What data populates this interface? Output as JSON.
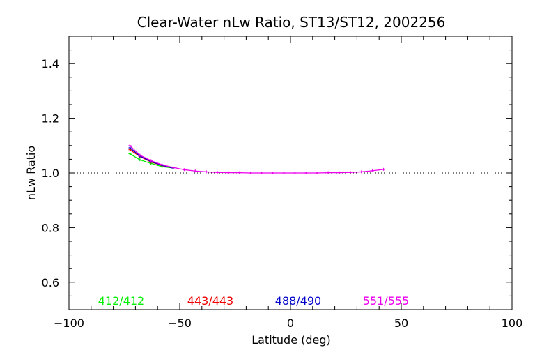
{
  "chart_data": {
    "type": "line",
    "title": "Clear-Water nLw Ratio, ST13/ST12, 2002256",
    "xlabel": "Latitude (deg)",
    "ylabel": "nLw Ratio",
    "xlim": [
      -100,
      100
    ],
    "ylim": [
      0.5,
      1.5
    ],
    "x_ticks": [
      -100,
      -50,
      0,
      50,
      100
    ],
    "x_tick_labels": [
      "−100",
      "−50",
      "0",
      "50",
      "100"
    ],
    "y_ticks": [
      0.6,
      0.8,
      1.0,
      1.2,
      1.4
    ],
    "y_tick_labels": [
      "0.6",
      "0.8",
      "1.0",
      "1.2",
      "1.4"
    ],
    "reference_line": {
      "y": 1.0,
      "style": "dotted"
    },
    "grid": false,
    "legend_placement": "bottom",
    "series": [
      {
        "name": "412/412",
        "color": "#00ee00",
        "x": [
          -72.5,
          -68,
          -63,
          -58,
          -53
        ],
        "y": [
          1.07,
          1.048,
          1.035,
          1.023,
          1.018
        ]
      },
      {
        "name": "443/443",
        "color": "#ee0000",
        "x": [
          -72.5,
          -68,
          -63,
          -58,
          -53
        ],
        "y": [
          1.085,
          1.06,
          1.04,
          1.027,
          1.018
        ]
      },
      {
        "name": "488/490",
        "color": "#0000cc",
        "x": [
          -72.5,
          -68,
          -63,
          -58,
          -53
        ],
        "y": [
          1.092,
          1.062,
          1.042,
          1.028,
          1.018
        ]
      },
      {
        "name": "551/555",
        "color": "#ee00ee",
        "x": [
          -72.5,
          -68,
          -63,
          -58,
          -53,
          -48,
          -43,
          -38,
          -33,
          -28,
          -23,
          -18,
          -13,
          -8,
          -3,
          2,
          7,
          12,
          17,
          22,
          27,
          32,
          37,
          42
        ],
        "y": [
          1.1,
          1.065,
          1.045,
          1.03,
          1.02,
          1.012,
          1.007,
          1.004,
          1.002,
          1.001,
          1.001,
          1.0,
          1.0,
          1.0,
          1.0,
          1.0,
          1.0,
          1.0,
          1.001,
          1.001,
          1.002,
          1.004,
          1.008,
          1.013
        ]
      }
    ]
  }
}
